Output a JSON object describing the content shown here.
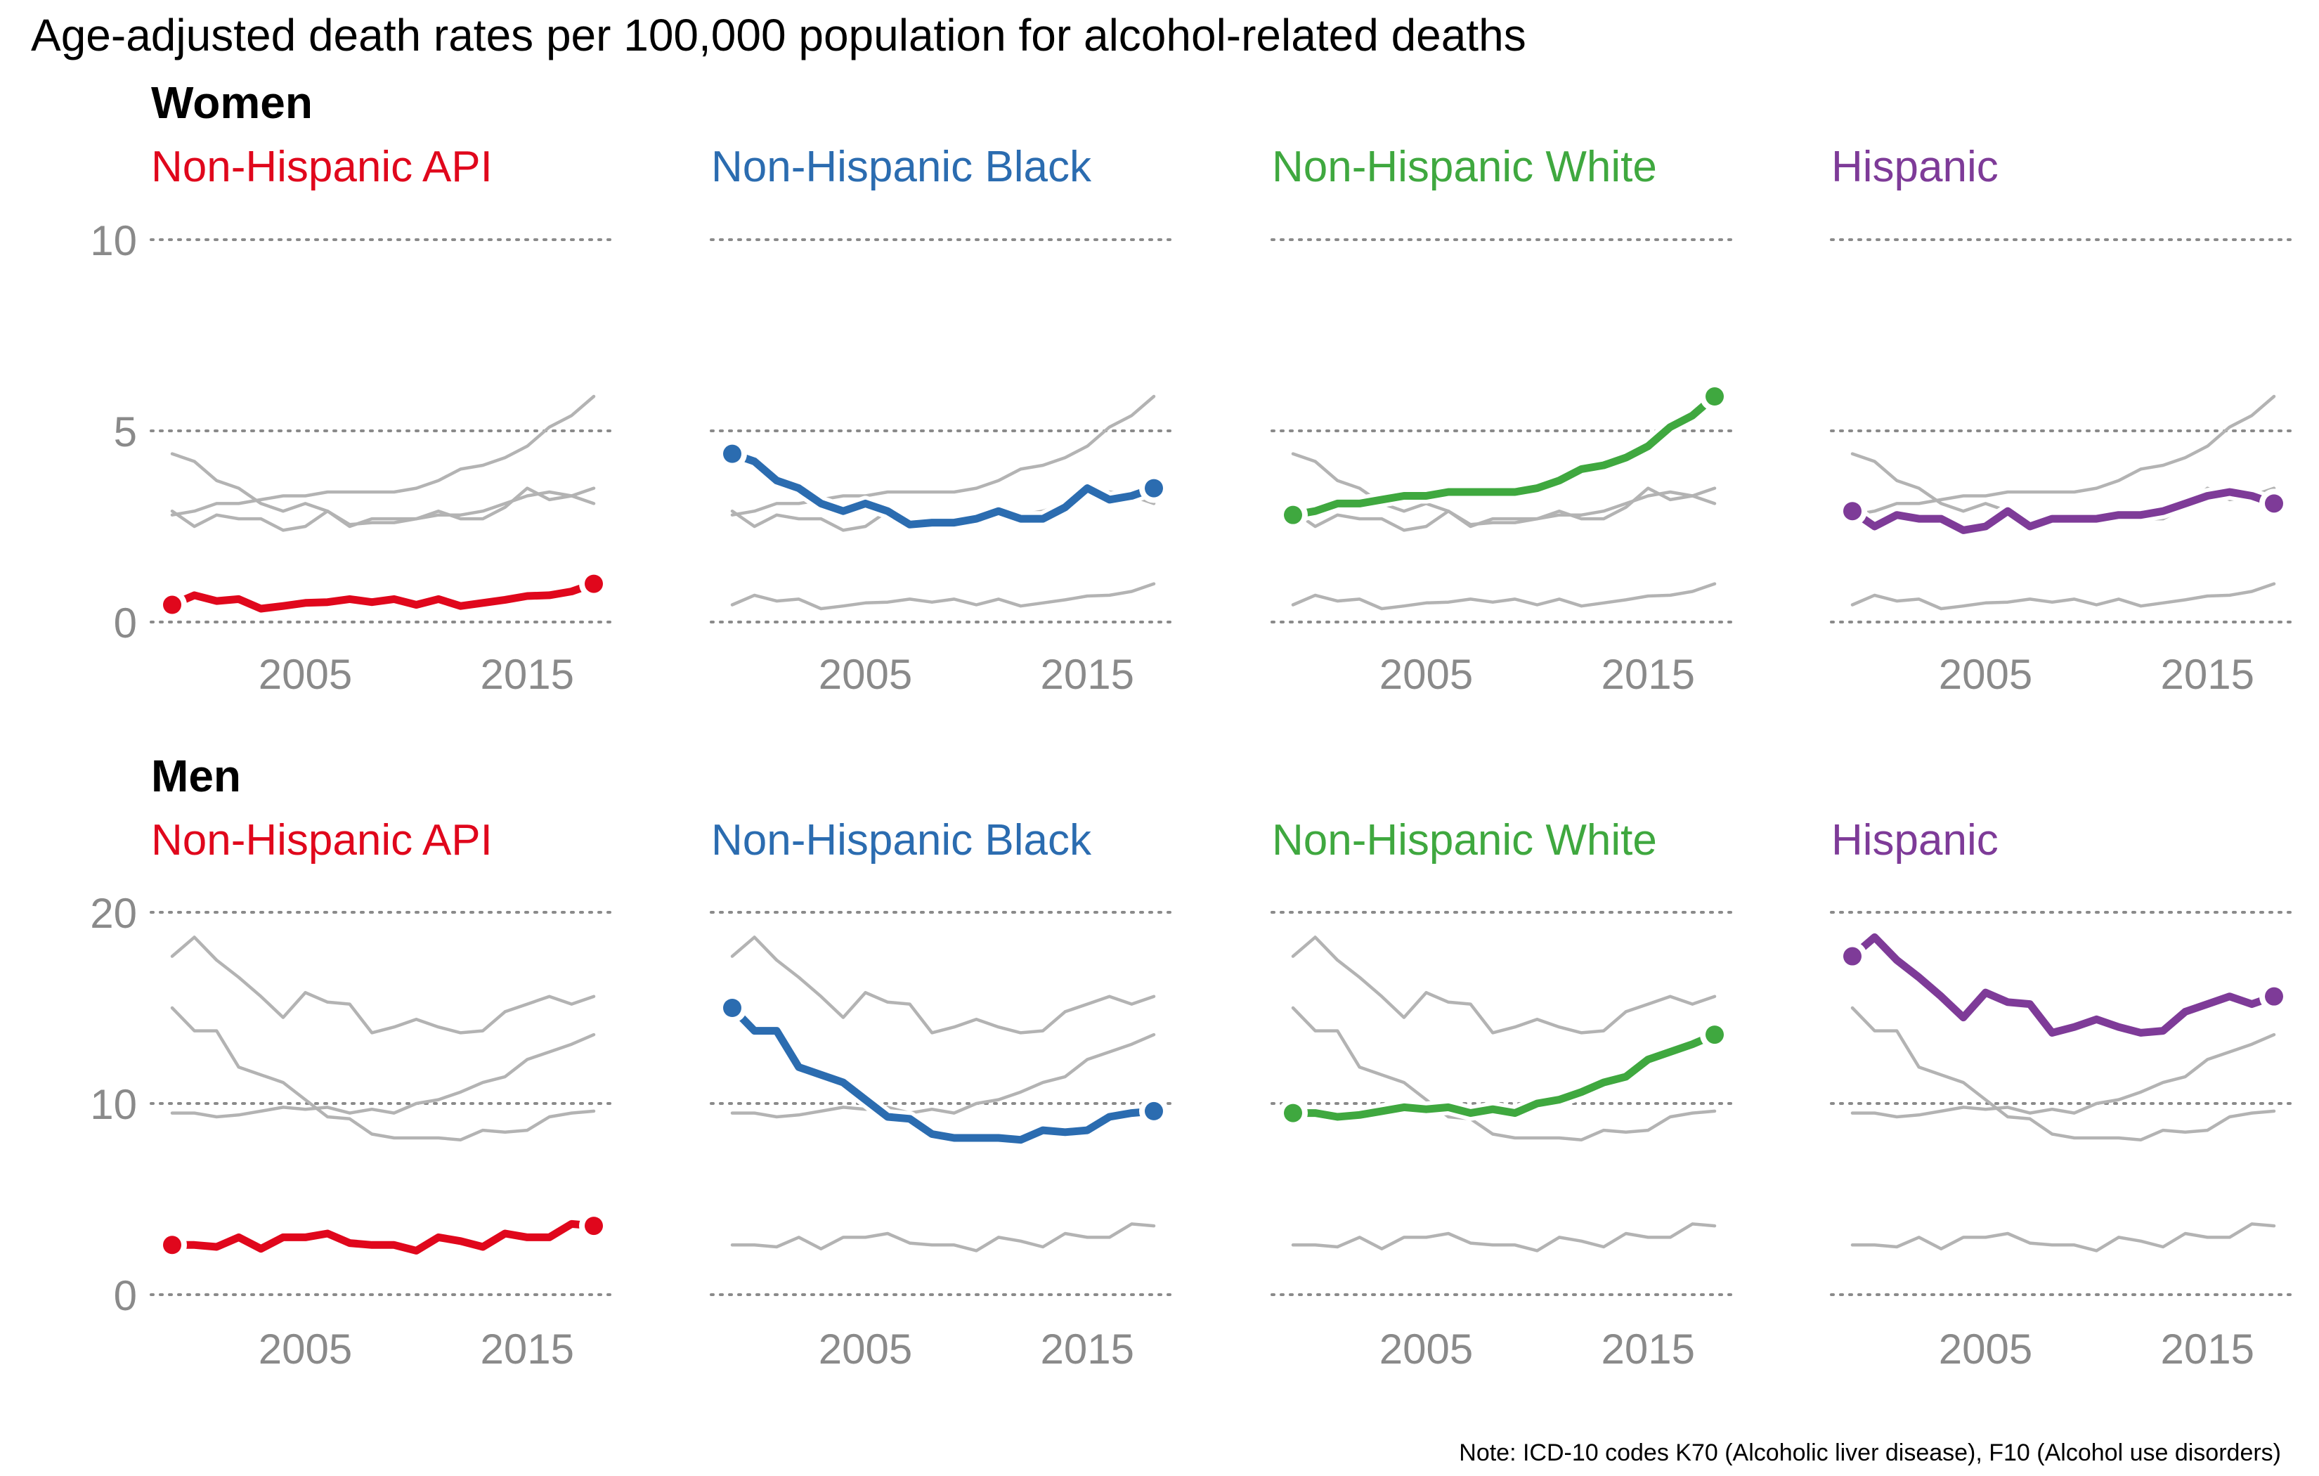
{
  "title": "Age-adjusted death rates per 100,000 population for alcohol-related deaths",
  "note": "Note: ICD-10 codes K70 (Alcoholic liver disease), F10 (Alcohol use disorders)",
  "colors": {
    "Non-Hispanic API": "#e0071c",
    "Non-Hispanic Black": "#2b6cb0",
    "Non-Hispanic White": "#3fa83f",
    "Hispanic": "#7e3b98",
    "background_line": "#b3b3b3",
    "grid": "#8a8a8a",
    "tick_label": "#8a8a8a"
  },
  "chart_data": [
    {
      "type": "line",
      "facet_title": "Women",
      "x": [
        1999,
        2000,
        2001,
        2002,
        2003,
        2004,
        2005,
        2006,
        2007,
        2008,
        2009,
        2010,
        2011,
        2012,
        2013,
        2014,
        2015,
        2016,
        2017,
        2018
      ],
      "y_ticks": [
        0,
        5,
        10
      ],
      "x_ticks": [
        2005,
        2015
      ],
      "ylim": [
        0,
        10
      ],
      "xlim": [
        1999,
        2018
      ],
      "panels": [
        "Non-Hispanic API",
        "Non-Hispanic Black",
        "Non-Hispanic White",
        "Hispanic"
      ],
      "series": [
        {
          "name": "Non-Hispanic API",
          "values": [
            0.45,
            0.7,
            0.55,
            0.6,
            0.35,
            0.42,
            0.5,
            0.52,
            0.6,
            0.52,
            0.6,
            0.45,
            0.6,
            0.42,
            0.5,
            0.58,
            0.68,
            0.7,
            0.8,
            1.0
          ]
        },
        {
          "name": "Non-Hispanic Black",
          "values": [
            4.4,
            4.2,
            3.7,
            3.5,
            3.1,
            2.9,
            3.1,
            2.9,
            2.55,
            2.6,
            2.6,
            2.7,
            2.9,
            2.7,
            2.7,
            3.0,
            3.5,
            3.2,
            3.3,
            3.5
          ]
        },
        {
          "name": "Non-Hispanic White",
          "values": [
            2.8,
            2.9,
            3.1,
            3.1,
            3.2,
            3.3,
            3.3,
            3.4,
            3.4,
            3.4,
            3.4,
            3.5,
            3.7,
            4.0,
            4.1,
            4.3,
            4.6,
            5.1,
            5.4,
            5.9
          ]
        },
        {
          "name": "Hispanic",
          "values": [
            2.9,
            2.5,
            2.8,
            2.7,
            2.7,
            2.4,
            2.5,
            2.9,
            2.5,
            2.7,
            2.7,
            2.7,
            2.8,
            2.8,
            2.9,
            3.1,
            3.3,
            3.4,
            3.3,
            3.1
          ]
        }
      ]
    },
    {
      "type": "line",
      "facet_title": "Men",
      "x": [
        1999,
        2000,
        2001,
        2002,
        2003,
        2004,
        2005,
        2006,
        2007,
        2008,
        2009,
        2010,
        2011,
        2012,
        2013,
        2014,
        2015,
        2016,
        2017,
        2018
      ],
      "y_ticks": [
        0,
        10,
        20
      ],
      "x_ticks": [
        2005,
        2015
      ],
      "ylim": [
        0,
        20
      ],
      "xlim": [
        1999,
        2018
      ],
      "panels": [
        "Non-Hispanic API",
        "Non-Hispanic Black",
        "Non-Hispanic White",
        "Hispanic"
      ],
      "series": [
        {
          "name": "Non-Hispanic API",
          "values": [
            2.6,
            2.6,
            2.5,
            3.0,
            2.4,
            3.0,
            3.0,
            3.2,
            2.7,
            2.6,
            2.6,
            2.3,
            3.0,
            2.8,
            2.5,
            3.2,
            3.0,
            3.0,
            3.7,
            3.6
          ]
        },
        {
          "name": "Non-Hispanic Black",
          "values": [
            15.0,
            13.8,
            13.8,
            11.9,
            11.5,
            11.1,
            10.2,
            9.3,
            9.2,
            8.4,
            8.2,
            8.2,
            8.2,
            8.1,
            8.6,
            8.5,
            8.6,
            9.3,
            9.5,
            9.6
          ]
        },
        {
          "name": "Non-Hispanic White",
          "values": [
            9.5,
            9.5,
            9.3,
            9.4,
            9.6,
            9.8,
            9.7,
            9.8,
            9.5,
            9.7,
            9.5,
            10.0,
            10.2,
            10.6,
            11.1,
            11.4,
            12.3,
            12.7,
            13.1,
            13.6
          ]
        },
        {
          "name": "Hispanic",
          "values": [
            17.7,
            18.7,
            17.5,
            16.6,
            15.6,
            14.5,
            15.8,
            15.3,
            15.2,
            13.7,
            14.0,
            14.4,
            14.0,
            13.7,
            13.8,
            14.8,
            15.2,
            15.6,
            15.2,
            15.6
          ]
        }
      ]
    }
  ]
}
